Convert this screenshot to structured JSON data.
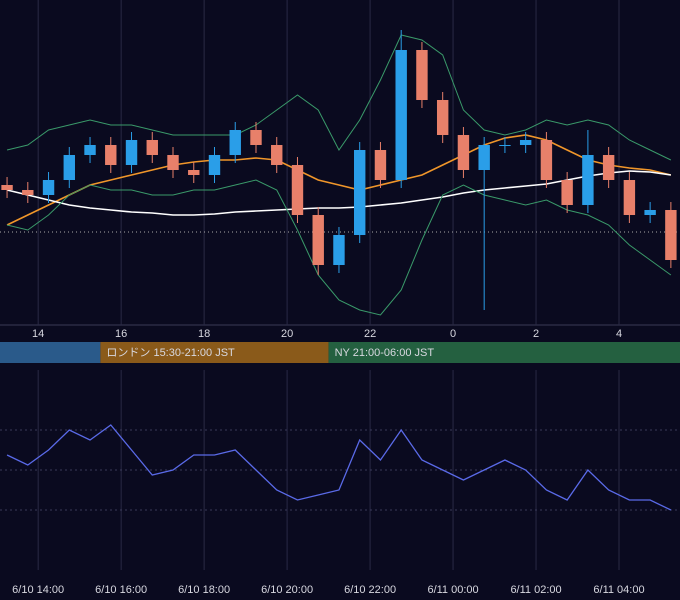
{
  "chart_data": [
    {
      "type": "candlestick",
      "x": [
        13.25,
        13.75,
        14.25,
        14.75,
        15.25,
        15.75,
        16.25,
        16.75,
        17.25,
        17.75,
        18.25,
        18.75,
        19.25,
        19.75,
        20.25,
        20.75,
        21.25,
        21.75,
        22.25,
        22.75,
        23.25,
        23.75,
        24.25,
        24.75,
        25.25,
        25.75,
        26.25,
        26.75,
        27.25,
        27.75,
        28.25,
        28.75,
        29.25
      ],
      "open": [
        140,
        135,
        130,
        145,
        170,
        180,
        160,
        185,
        170,
        155,
        150,
        170,
        195,
        180,
        160,
        110,
        60,
        90,
        175,
        145,
        275,
        225,
        190,
        155,
        180,
        180,
        185,
        145,
        120,
        170,
        145,
        110,
        115
      ],
      "high": [
        148,
        143,
        153,
        178,
        188,
        188,
        193,
        193,
        178,
        163,
        178,
        203,
        203,
        188,
        168,
        118,
        98,
        183,
        183,
        295,
        283,
        233,
        198,
        188,
        188,
        193,
        193,
        153,
        195,
        178,
        153,
        123,
        123
      ],
      "low": [
        127,
        122,
        122,
        137,
        162,
        152,
        152,
        162,
        147,
        142,
        142,
        162,
        172,
        152,
        102,
        50,
        52,
        82,
        137,
        137,
        217,
        182,
        147,
        15,
        172,
        172,
        137,
        112,
        112,
        137,
        102,
        102,
        57
      ],
      "close": [
        135,
        130,
        145,
        170,
        180,
        160,
        185,
        170,
        155,
        150,
        170,
        195,
        180,
        160,
        110,
        60,
        90,
        175,
        145,
        275,
        225,
        190,
        155,
        180,
        180,
        185,
        145,
        120,
        170,
        145,
        110,
        115,
        65
      ],
      "up_color": "#2a9ee8",
      "down_color": "#e8806a",
      "series": [
        {
          "color": "#f0962a",
          "width": 1.6,
          "values": [
            100,
            110,
            120,
            130,
            140,
            145,
            150,
            155,
            160,
            163,
            165,
            165,
            167,
            165,
            155,
            145,
            140,
            135,
            140,
            145,
            150,
            160,
            170,
            180,
            187,
            190,
            185,
            175,
            165,
            160,
            157,
            155,
            150
          ]
        },
        {
          "color": "#ffffff",
          "width": 1.6,
          "values": [
            135,
            130,
            125,
            120,
            117,
            115,
            113,
            112,
            110,
            110,
            111,
            113,
            114,
            115,
            116,
            117,
            117,
            118,
            120,
            122,
            125,
            128,
            132,
            135,
            137,
            139,
            141,
            145,
            149,
            152,
            154,
            153,
            150
          ]
        },
        {
          "color": "#3a9a6a",
          "width": 1,
          "values": [
            175,
            180,
            195,
            200,
            205,
            200,
            200,
            195,
            190,
            190,
            190,
            190,
            200,
            215,
            230,
            215,
            175,
            205,
            245,
            290,
            285,
            270,
            215,
            195,
            190,
            195,
            205,
            200,
            205,
            200,
            185,
            175,
            165
          ]
        },
        {
          "color": "#3a9a6a",
          "width": 1,
          "values": [
            100,
            95,
            110,
            130,
            140,
            135,
            135,
            130,
            130,
            135,
            135,
            140,
            145,
            135,
            95,
            50,
            25,
            15,
            10,
            35,
            85,
            130,
            140,
            130,
            125,
            120,
            125,
            115,
            110,
            100,
            80,
            65,
            50
          ]
        }
      ],
      "price_line": 93,
      "xlim": [
        13.08,
        29.47
      ],
      "ylim": [
        0,
        325
      ],
      "xticks": [
        14,
        16,
        18,
        20,
        22,
        {
          "value": 24,
          "label": "0"
        },
        {
          "value": 26,
          "label": "2"
        },
        {
          "value": 28,
          "label": "4"
        }
      ],
      "sessions": [
        {
          "label": "ロンドン 15:30-21:00 JST",
          "start": 15.5,
          "end": 21,
          "color": "#8a5a1a"
        },
        {
          "label": "NY 21:00-06:00 JST",
          "start": 21,
          "end": 30,
          "color": "#246040"
        }
      ],
      "pre_session_color": "#2a5a8a"
    },
    {
      "type": "line",
      "x": [
        13.25,
        13.75,
        14.25,
        14.75,
        15.25,
        15.75,
        16.25,
        16.75,
        17.25,
        17.75,
        18.25,
        18.75,
        19.25,
        19.75,
        20.25,
        20.75,
        21.25,
        21.75,
        22.25,
        22.75,
        23.25,
        23.75,
        24.25,
        24.75,
        25.25,
        25.75,
        26.25,
        26.75,
        27.25,
        27.75,
        28.25,
        28.75,
        29.25
      ],
      "values": [
        115,
        105,
        120,
        140,
        130,
        145,
        120,
        95,
        100,
        115,
        115,
        120,
        100,
        80,
        70,
        75,
        80,
        130,
        110,
        140,
        110,
        100,
        90,
        100,
        110,
        100,
        80,
        70,
        100,
        80,
        70,
        70,
        60
      ],
      "color": "#5a6ae8",
      "xlim": [
        13.08,
        29.47
      ],
      "ylim": [
        0,
        200
      ],
      "yticks": [
        60,
        100,
        140
      ],
      "xticks": [
        {
          "value": 14,
          "label": "6/10 14:00"
        },
        {
          "value": 16,
          "label": "6/10 16:00"
        },
        {
          "value": 18,
          "label": "6/10 18:00"
        },
        {
          "value": 20,
          "label": "6/10 20:00"
        },
        {
          "value": 22,
          "label": "6/10 22:00"
        },
        {
          "value": 24,
          "label": "6/11 00:00"
        },
        {
          "value": 26,
          "label": "6/11 02:00"
        },
        {
          "value": 28,
          "label": "6/11 04:00"
        }
      ]
    }
  ]
}
